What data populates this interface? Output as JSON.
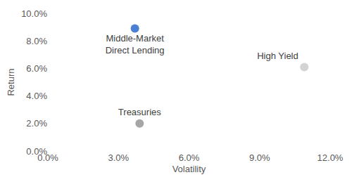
{
  "chart_data": {
    "type": "scatter",
    "x_label": "Volatility",
    "y_label": "Return",
    "labels": [
      "Middle-Market\nDirect Lending",
      "Treasuries",
      "High Yield"
    ],
    "x": [
      3.7,
      3.9,
      10.9
    ],
    "values": [
      8.9,
      2.0,
      6.1
    ],
    "colors": [
      "#4a7fd4",
      "#a6a6a6",
      "#d3d3d3"
    ],
    "xlim": [
      0,
      12
    ],
    "xticks": [
      {
        "value": 0,
        "label": "0.0%"
      },
      {
        "value": 3,
        "label": "3.0%"
      },
      {
        "value": 6,
        "label": "6.0%"
      },
      {
        "value": 9,
        "label": "9.0%"
      },
      {
        "value": 12,
        "label": "12.0%"
      }
    ],
    "ylim": [
      0,
      10
    ],
    "yticks": [
      {
        "value": 0,
        "label": "0.0%"
      },
      {
        "value": 2,
        "label": "2.0%"
      },
      {
        "value": 4,
        "label": "4.0%"
      },
      {
        "value": 6,
        "label": "6.0%"
      },
      {
        "value": 8,
        "label": "8.0%"
      },
      {
        "value": 10,
        "label": "10.0%"
      }
    ],
    "grid": false,
    "data_labels": true
  }
}
